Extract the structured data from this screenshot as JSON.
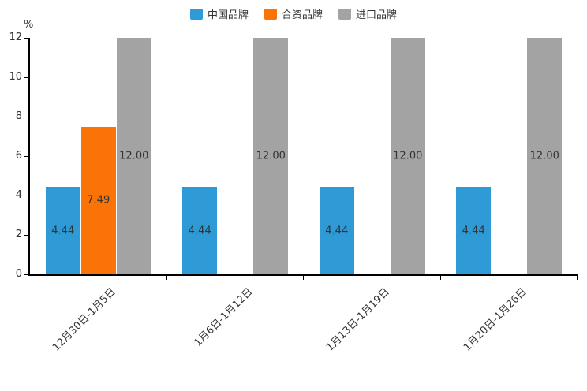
{
  "chart_data": {
    "type": "bar",
    "title": "",
    "xlabel": "",
    "ylabel": "%",
    "ylim": [
      0,
      12
    ],
    "yticks": [
      0,
      2,
      4,
      6,
      8,
      10,
      12
    ],
    "grid": false,
    "legend_position": "top-center",
    "categories": [
      "12月30日-1月5日",
      "1月6日-1月12日",
      "1月13日-1月19日",
      "1月20日-1月26日"
    ],
    "series": [
      {
        "name": "中国品牌",
        "color": "#2e9bd6",
        "values": [
          4.44,
          4.44,
          4.44,
          4.44
        ]
      },
      {
        "name": "合资品牌",
        "color": "#fa7306",
        "values": [
          7.49,
          null,
          null,
          null
        ]
      },
      {
        "name": "进口品牌",
        "color": "#a3a3a3",
        "values": [
          12.0,
          12.0,
          12.0,
          12.0
        ]
      }
    ],
    "data_label_color": "#333333",
    "axis_color": "#000000"
  }
}
